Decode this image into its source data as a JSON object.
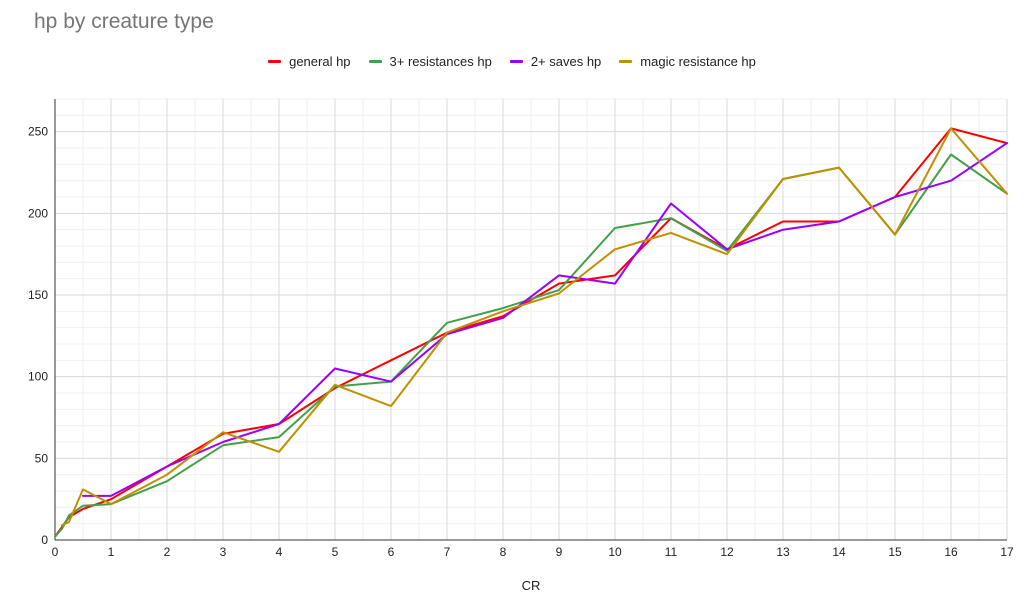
{
  "chart_data": {
    "type": "line",
    "title": "hp by creature type",
    "xlabel": "CR",
    "ylabel": "",
    "xlim": [
      0,
      17
    ],
    "ylim": [
      0,
      270
    ],
    "xticks": [
      0,
      1,
      2,
      3,
      4,
      5,
      6,
      7,
      8,
      9,
      10,
      11,
      12,
      13,
      14,
      15,
      16,
      17
    ],
    "yticks": [
      0,
      50,
      100,
      150,
      200,
      250
    ],
    "grid": true,
    "legend_position": "top",
    "series": [
      {
        "name": "general hp",
        "color": "#ff0000",
        "points": [
          [
            0,
            2
          ],
          [
            0.125,
            8
          ],
          [
            0.25,
            14
          ],
          [
            0.5,
            19
          ],
          [
            1,
            25
          ],
          [
            2,
            45
          ],
          [
            3,
            65
          ],
          [
            4,
            71
          ],
          [
            5,
            93
          ],
          [
            6,
            110
          ],
          [
            7,
            127
          ],
          [
            8,
            137
          ],
          [
            9,
            157
          ],
          [
            10,
            162
          ],
          [
            11,
            197
          ],
          [
            12,
            178
          ],
          [
            13,
            195
          ],
          [
            14,
            195
          ],
          [
            15,
            210
          ],
          [
            16,
            252
          ],
          [
            17,
            243
          ]
        ]
      },
      {
        "name": "3+ resistances hp",
        "color": "#43a047",
        "points": [
          [
            0,
            2
          ],
          [
            0.125,
            7
          ],
          [
            0.25,
            15
          ],
          [
            0.5,
            21
          ],
          [
            1,
            22
          ],
          [
            2,
            36
          ],
          [
            3,
            58
          ],
          [
            4,
            63
          ],
          [
            5,
            94
          ],
          [
            6,
            97
          ],
          [
            7,
            133
          ],
          [
            8,
            142
          ],
          [
            9,
            153
          ],
          [
            10,
            191
          ],
          [
            11,
            197
          ],
          [
            12,
            177
          ],
          [
            13,
            221
          ],
          [
            14,
            228
          ],
          [
            15,
            187
          ],
          [
            16,
            236
          ],
          [
            17,
            212
          ]
        ]
      },
      {
        "name": "2+ saves hp",
        "color": "#9900ff",
        "points": [
          [
            0.5,
            27
          ],
          [
            1,
            27
          ],
          [
            2,
            45
          ],
          [
            3,
            60
          ],
          [
            4,
            71
          ],
          [
            5,
            105
          ],
          [
            6,
            97
          ],
          [
            7,
            126
          ],
          [
            8,
            136
          ],
          [
            9,
            162
          ],
          [
            10,
            157
          ],
          [
            11,
            206
          ],
          [
            12,
            178
          ],
          [
            13,
            190
          ],
          [
            14,
            195
          ],
          [
            15,
            210
          ],
          [
            16,
            220
          ],
          [
            17,
            243
          ]
        ]
      },
      {
        "name": "magic resistance hp",
        "color": "#bf9000",
        "points": [
          [
            0.125,
            9
          ],
          [
            0.25,
            11
          ],
          [
            0.5,
            31
          ],
          [
            1,
            22
          ],
          [
            2,
            40
          ],
          [
            3,
            66
          ],
          [
            4,
            54
          ],
          [
            5,
            95
          ],
          [
            6,
            82
          ],
          [
            7,
            127
          ],
          [
            8,
            140
          ],
          [
            9,
            151
          ],
          [
            10,
            178
          ],
          [
            11,
            188
          ],
          [
            12,
            175
          ],
          [
            13,
            221
          ],
          [
            14,
            228
          ],
          [
            15,
            187
          ],
          [
            16,
            252
          ],
          [
            17,
            212
          ]
        ]
      }
    ]
  }
}
